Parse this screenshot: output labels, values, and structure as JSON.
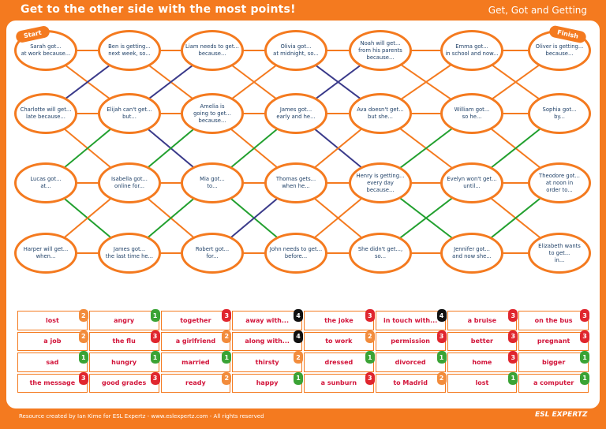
{
  "header": {
    "title": "Get to the other side with the most points!",
    "topic": "Get, Got and Getting"
  },
  "labels": {
    "start": "Start",
    "finish": "Finish"
  },
  "colors": {
    "orange": "#f47a1f",
    "navy": "#3a3a8a",
    "green": "#22a02f",
    "text_blue": "#1e3f66",
    "word_red": "#d2143a",
    "score_1": "#3aa335",
    "score_2": "#f28c3c",
    "score_3": "#e0262e",
    "score_4": "#111111"
  },
  "grid_rows": [
    [
      "Sarah got...\nat work because...",
      "Ben is getting...\nnext week, so...",
      "Liam needs to get...\nbecause...",
      "Olivia got...\nat midnight, so...",
      "Noah will get...\nfrom his parents\nbecause...",
      "Emma got...\nin school and now...",
      "Oliver is getting...\nbecause..."
    ],
    [
      "Charlotte will get...\nlate because...",
      "Elijah can't get...\nbut...",
      "Amelia is\ngoing to get...\nbecause...",
      "James got...\nearly and he...",
      "Ava doesn't get...\nbut she...",
      "William got...\nso he...",
      "Sophia got...\nby..."
    ],
    [
      "Lucas got...\nat...",
      "Isabella got...\nonline for...",
      "Mia got...\nto...",
      "Thomas gets...\nwhen he...",
      "Henry is getting...\nevery day\nbecause...",
      "Evelyn won't get...\nuntil...",
      "Theodore got...\nat noon in\norder to..."
    ],
    [
      "Harper will get...\nwhen...",
      "James got...\nthe last time he...",
      "Robert got...\nfor...",
      "John needs to get...\nbefore...",
      "She didn't get...,\nso...",
      "Jennifer got...\nand now she...",
      "Elizabeth wants\nto get...\nin..."
    ]
  ],
  "connections": [
    {
      "from": [
        0,
        0
      ],
      "to": [
        0,
        1
      ],
      "color": "orange"
    },
    {
      "from": [
        0,
        1
      ],
      "to": [
        0,
        2
      ],
      "color": "orange"
    },
    {
      "from": [
        0,
        2
      ],
      "to": [
        0,
        3
      ],
      "color": "orange"
    },
    {
      "from": [
        0,
        3
      ],
      "to": [
        0,
        4
      ],
      "color": "orange"
    },
    {
      "from": [
        0,
        4
      ],
      "to": [
        0,
        5
      ],
      "color": "orange"
    },
    {
      "from": [
        0,
        5
      ],
      "to": [
        0,
        6
      ],
      "color": "orange"
    },
    {
      "from": [
        1,
        0
      ],
      "to": [
        1,
        1
      ],
      "color": "orange"
    },
    {
      "from": [
        1,
        1
      ],
      "to": [
        1,
        2
      ],
      "color": "orange"
    },
    {
      "from": [
        1,
        2
      ],
      "to": [
        1,
        3
      ],
      "color": "orange"
    },
    {
      "from": [
        1,
        3
      ],
      "to": [
        1,
        4
      ],
      "color": "orange"
    },
    {
      "from": [
        1,
        4
      ],
      "to": [
        1,
        5
      ],
      "color": "orange"
    },
    {
      "from": [
        1,
        5
      ],
      "to": [
        1,
        6
      ],
      "color": "orange"
    },
    {
      "from": [
        2,
        0
      ],
      "to": [
        2,
        1
      ],
      "color": "orange"
    },
    {
      "from": [
        2,
        1
      ],
      "to": [
        2,
        2
      ],
      "color": "orange"
    },
    {
      "from": [
        2,
        2
      ],
      "to": [
        2,
        3
      ],
      "color": "orange"
    },
    {
      "from": [
        2,
        3
      ],
      "to": [
        2,
        4
      ],
      "color": "orange"
    },
    {
      "from": [
        2,
        4
      ],
      "to": [
        2,
        5
      ],
      "color": "orange"
    },
    {
      "from": [
        2,
        5
      ],
      "to": [
        2,
        6
      ],
      "color": "orange"
    },
    {
      "from": [
        3,
        0
      ],
      "to": [
        3,
        1
      ],
      "color": "orange"
    },
    {
      "from": [
        3,
        1
      ],
      "to": [
        3,
        2
      ],
      "color": "orange"
    },
    {
      "from": [
        3,
        2
      ],
      "to": [
        3,
        3
      ],
      "color": "orange"
    },
    {
      "from": [
        3,
        3
      ],
      "to": [
        3,
        4
      ],
      "color": "orange"
    },
    {
      "from": [
        3,
        4
      ],
      "to": [
        3,
        5
      ],
      "color": "orange"
    },
    {
      "from": [
        3,
        5
      ],
      "to": [
        3,
        6
      ],
      "color": "orange"
    },
    {
      "from": [
        0,
        0
      ],
      "to": [
        1,
        1
      ],
      "color": "orange"
    },
    {
      "from": [
        1,
        0
      ],
      "to": [
        0,
        1
      ],
      "color": "navy"
    },
    {
      "from": [
        0,
        1
      ],
      "to": [
        1,
        2
      ],
      "color": "orange"
    },
    {
      "from": [
        1,
        1
      ],
      "to": [
        0,
        2
      ],
      "color": "navy"
    },
    {
      "from": [
        0,
        2
      ],
      "to": [
        1,
        3
      ],
      "color": "orange"
    },
    {
      "from": [
        1,
        2
      ],
      "to": [
        0,
        3
      ],
      "color": "orange"
    },
    {
      "from": [
        0,
        3
      ],
      "to": [
        1,
        4
      ],
      "color": "navy"
    },
    {
      "from": [
        1,
        3
      ],
      "to": [
        0,
        4
      ],
      "color": "navy"
    },
    {
      "from": [
        0,
        4
      ],
      "to": [
        1,
        5
      ],
      "color": "orange"
    },
    {
      "from": [
        1,
        4
      ],
      "to": [
        0,
        5
      ],
      "color": "orange"
    },
    {
      "from": [
        0,
        5
      ],
      "to": [
        1,
        6
      ],
      "color": "orange"
    },
    {
      "from": [
        1,
        5
      ],
      "to": [
        0,
        6
      ],
      "color": "orange"
    },
    {
      "from": [
        1,
        0
      ],
      "to": [
        2,
        1
      ],
      "color": "orange"
    },
    {
      "from": [
        2,
        0
      ],
      "to": [
        1,
        1
      ],
      "color": "green"
    },
    {
      "from": [
        1,
        1
      ],
      "to": [
        2,
        2
      ],
      "color": "navy"
    },
    {
      "from": [
        2,
        1
      ],
      "to": [
        1,
        2
      ],
      "color": "green"
    },
    {
      "from": [
        1,
        2
      ],
      "to": [
        2,
        3
      ],
      "color": "orange"
    },
    {
      "from": [
        2,
        2
      ],
      "to": [
        1,
        3
      ],
      "color": "green"
    },
    {
      "from": [
        1,
        3
      ],
      "to": [
        2,
        4
      ],
      "color": "navy"
    },
    {
      "from": [
        2,
        3
      ],
      "to": [
        1,
        4
      ],
      "color": "orange"
    },
    {
      "from": [
        1,
        4
      ],
      "to": [
        2,
        5
      ],
      "color": "orange"
    },
    {
      "from": [
        2,
        4
      ],
      "to": [
        1,
        5
      ],
      "color": "green"
    },
    {
      "from": [
        1,
        5
      ],
      "to": [
        2,
        6
      ],
      "color": "orange"
    },
    {
      "from": [
        2,
        5
      ],
      "to": [
        1,
        6
      ],
      "color": "green"
    },
    {
      "from": [
        2,
        0
      ],
      "to": [
        3,
        1
      ],
      "color": "green"
    },
    {
      "from": [
        3,
        0
      ],
      "to": [
        2,
        1
      ],
      "color": "orange"
    },
    {
      "from": [
        2,
        1
      ],
      "to": [
        3,
        2
      ],
      "color": "orange"
    },
    {
      "from": [
        3,
        1
      ],
      "to": [
        2,
        2
      ],
      "color": "green"
    },
    {
      "from": [
        2,
        2
      ],
      "to": [
        3,
        3
      ],
      "color": "green"
    },
    {
      "from": [
        3,
        2
      ],
      "to": [
        2,
        3
      ],
      "color": "navy"
    },
    {
      "from": [
        2,
        3
      ],
      "to": [
        3,
        4
      ],
      "color": "orange"
    },
    {
      "from": [
        3,
        3
      ],
      "to": [
        2,
        4
      ],
      "color": "orange"
    },
    {
      "from": [
        2,
        4
      ],
      "to": [
        3,
        5
      ],
      "color": "green"
    },
    {
      "from": [
        3,
        4
      ],
      "to": [
        2,
        5
      ],
      "color": "green"
    },
    {
      "from": [
        2,
        5
      ],
      "to": [
        3,
        6
      ],
      "color": "orange"
    },
    {
      "from": [
        3,
        5
      ],
      "to": [
        2,
        6
      ],
      "color": "green"
    }
  ],
  "word_table": [
    [
      {
        "text": "lost",
        "score": 2
      },
      {
        "text": "angry",
        "score": 1
      },
      {
        "text": "together",
        "score": 3
      },
      {
        "text": "away with...",
        "score": 4
      },
      {
        "text": "the joke",
        "score": 3
      },
      {
        "text": "in touch with...",
        "score": 4
      },
      {
        "text": "a bruise",
        "score": 3
      },
      {
        "text": "on the bus",
        "score": 3
      }
    ],
    [
      {
        "text": "a job",
        "score": 2
      },
      {
        "text": "the flu",
        "score": 3
      },
      {
        "text": "a girlfriend",
        "score": 2
      },
      {
        "text": "along with...",
        "score": 4
      },
      {
        "text": "to work",
        "score": 2
      },
      {
        "text": "permission",
        "score": 3
      },
      {
        "text": "better",
        "score": 3
      },
      {
        "text": "pregnant",
        "score": 3
      }
    ],
    [
      {
        "text": "sad",
        "score": 1
      },
      {
        "text": "hungry",
        "score": 1
      },
      {
        "text": "married",
        "score": 1
      },
      {
        "text": "thirsty",
        "score": 2
      },
      {
        "text": "dressed",
        "score": 1
      },
      {
        "text": "divorced",
        "score": 1
      },
      {
        "text": "home",
        "score": 3
      },
      {
        "text": "bigger",
        "score": 1
      }
    ],
    [
      {
        "text": "the message",
        "score": 3
      },
      {
        "text": "good grades",
        "score": 3
      },
      {
        "text": "ready",
        "score": 2
      },
      {
        "text": "happy",
        "score": 1
      },
      {
        "text": "a sunburn",
        "score": 3
      },
      {
        "text": "to Madrid",
        "score": 2
      },
      {
        "text": "lost",
        "score": 1
      },
      {
        "text": "a computer",
        "score": 1
      }
    ]
  ],
  "footer": {
    "credit": "Resource created by Ian Kime for ESL Expertz - www.eslexpertz.com - All rights reserved",
    "brand": "ESL EXPERTZ"
  }
}
